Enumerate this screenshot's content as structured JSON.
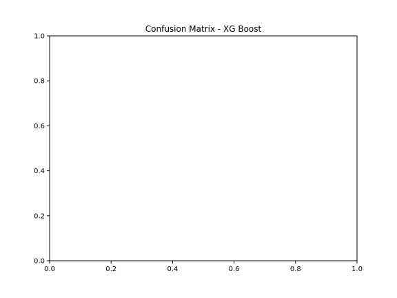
{
  "chart_data": {
    "type": "heatmap",
    "title": "Confusion Matrix - XG Boost",
    "xlabel": "",
    "ylabel": "",
    "xlim": [
      0.0,
      1.0
    ],
    "ylim": [
      0.0,
      1.0
    ],
    "xticks": [
      "0.0",
      "0.2",
      "0.4",
      "0.6",
      "0.8",
      "1.0"
    ],
    "yticks": [
      "0.0",
      "0.2",
      "0.4",
      "0.6",
      "0.8",
      "1.0"
    ],
    "grid": false,
    "values": []
  }
}
